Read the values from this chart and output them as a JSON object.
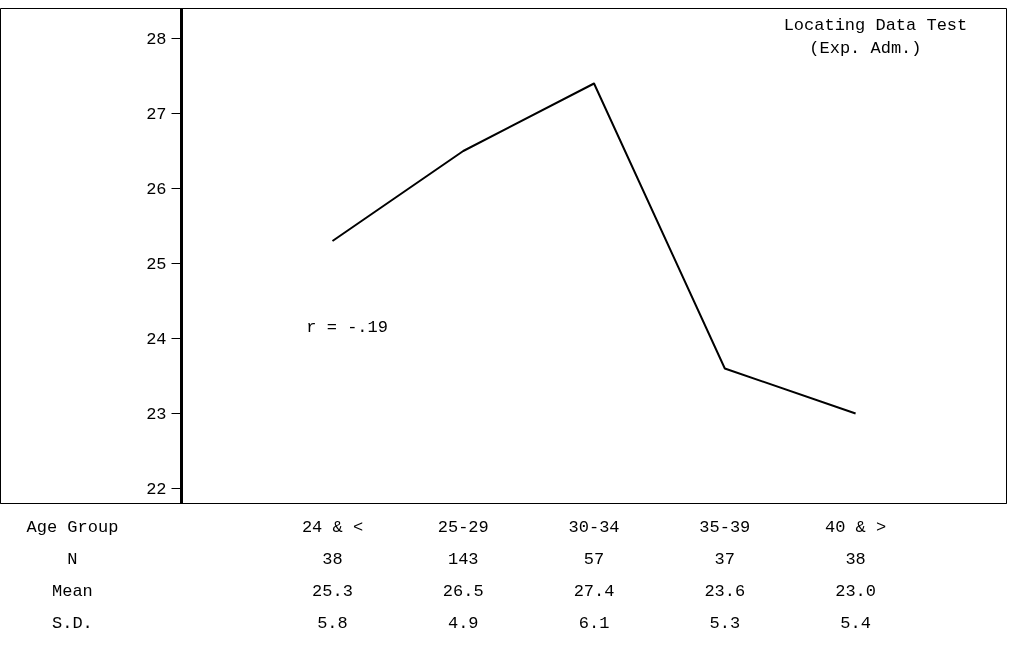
{
  "chart_data": {
    "type": "line",
    "title": "Locating Data Test\n(Exp. Adm.)",
    "xlabel": "Age Group",
    "categories": [
      "24 & <",
      "25-29",
      "30-34",
      "35-39",
      "40 & >"
    ],
    "values": [
      25.3,
      26.5,
      27.4,
      23.6,
      23.0
    ],
    "color": "#000000",
    "ylim": [
      21.8,
      28.4
    ],
    "yticks": [
      22,
      23,
      24,
      25,
      26,
      27,
      28
    ],
    "grid": false,
    "marker": "none",
    "line_style": "solid",
    "value_labels": [
      "25.3",
      "26.5",
      "27.4",
      "23.6",
      "23.0"
    ],
    "annotations": [
      "r = -.19",
      "N",
      "38",
      "143",
      "57",
      "37",
      "38",
      "Mean",
      "S.D.",
      "5.8",
      "4.9",
      "6.1",
      "5.3",
      "5.4"
    ]
  }
}
